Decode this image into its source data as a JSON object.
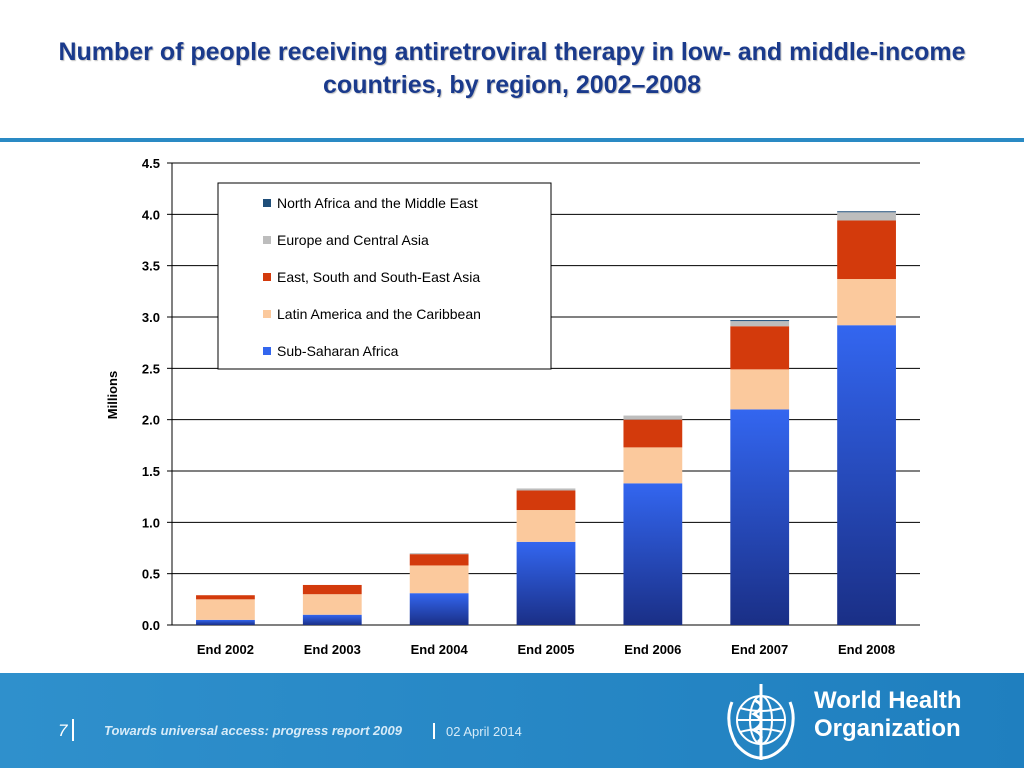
{
  "slide": {
    "title": "Number of people receiving antiretroviral therapy in low- and middle-income countries, by region, 2002–2008"
  },
  "chart_data": {
    "type": "bar",
    "stacked": true,
    "title": "",
    "xlabel": "",
    "ylabel": "Millions",
    "ylim": [
      0,
      4.5
    ],
    "yticks": [
      "0.0",
      "0.5",
      "1.0",
      "1.5",
      "2.0",
      "2.5",
      "3.0",
      "3.5",
      "4.0",
      "4.5"
    ],
    "grid": true,
    "legend_position": "top-left",
    "categories": [
      "End 2002",
      "End 2003",
      "End 2004",
      "End 2005",
      "End 2006",
      "End 2007",
      "End 2008"
    ],
    "series": [
      {
        "name": "Sub-Saharan Africa",
        "color": "#3366ee",
        "values": [
          0.05,
          0.1,
          0.31,
          0.81,
          1.38,
          2.1,
          2.92
        ]
      },
      {
        "name": "Latin America and the Caribbean",
        "color": "#fbc99d",
        "values": [
          0.2,
          0.2,
          0.27,
          0.31,
          0.35,
          0.39,
          0.45
        ]
      },
      {
        "name": "East, South and South-East Asia",
        "color": "#d33a0c",
        "values": [
          0.04,
          0.09,
          0.11,
          0.19,
          0.27,
          0.42,
          0.57
        ]
      },
      {
        "name": "Europe and Central Asia",
        "color": "#bdbdbd",
        "values": [
          0.0,
          0.0,
          0.01,
          0.02,
          0.04,
          0.05,
          0.08
        ]
      },
      {
        "name": "North Africa and the Middle East",
        "color": "#1f4e79",
        "values": [
          0.0,
          0.0,
          0.0,
          0.0,
          0.0,
          0.01,
          0.01
        ]
      }
    ]
  },
  "footer": {
    "page_number": "7",
    "report": "Towards universal access: progress report 2009",
    "date": "02 April 2014",
    "org_line1": "World Health",
    "org_line2": "Organization"
  }
}
